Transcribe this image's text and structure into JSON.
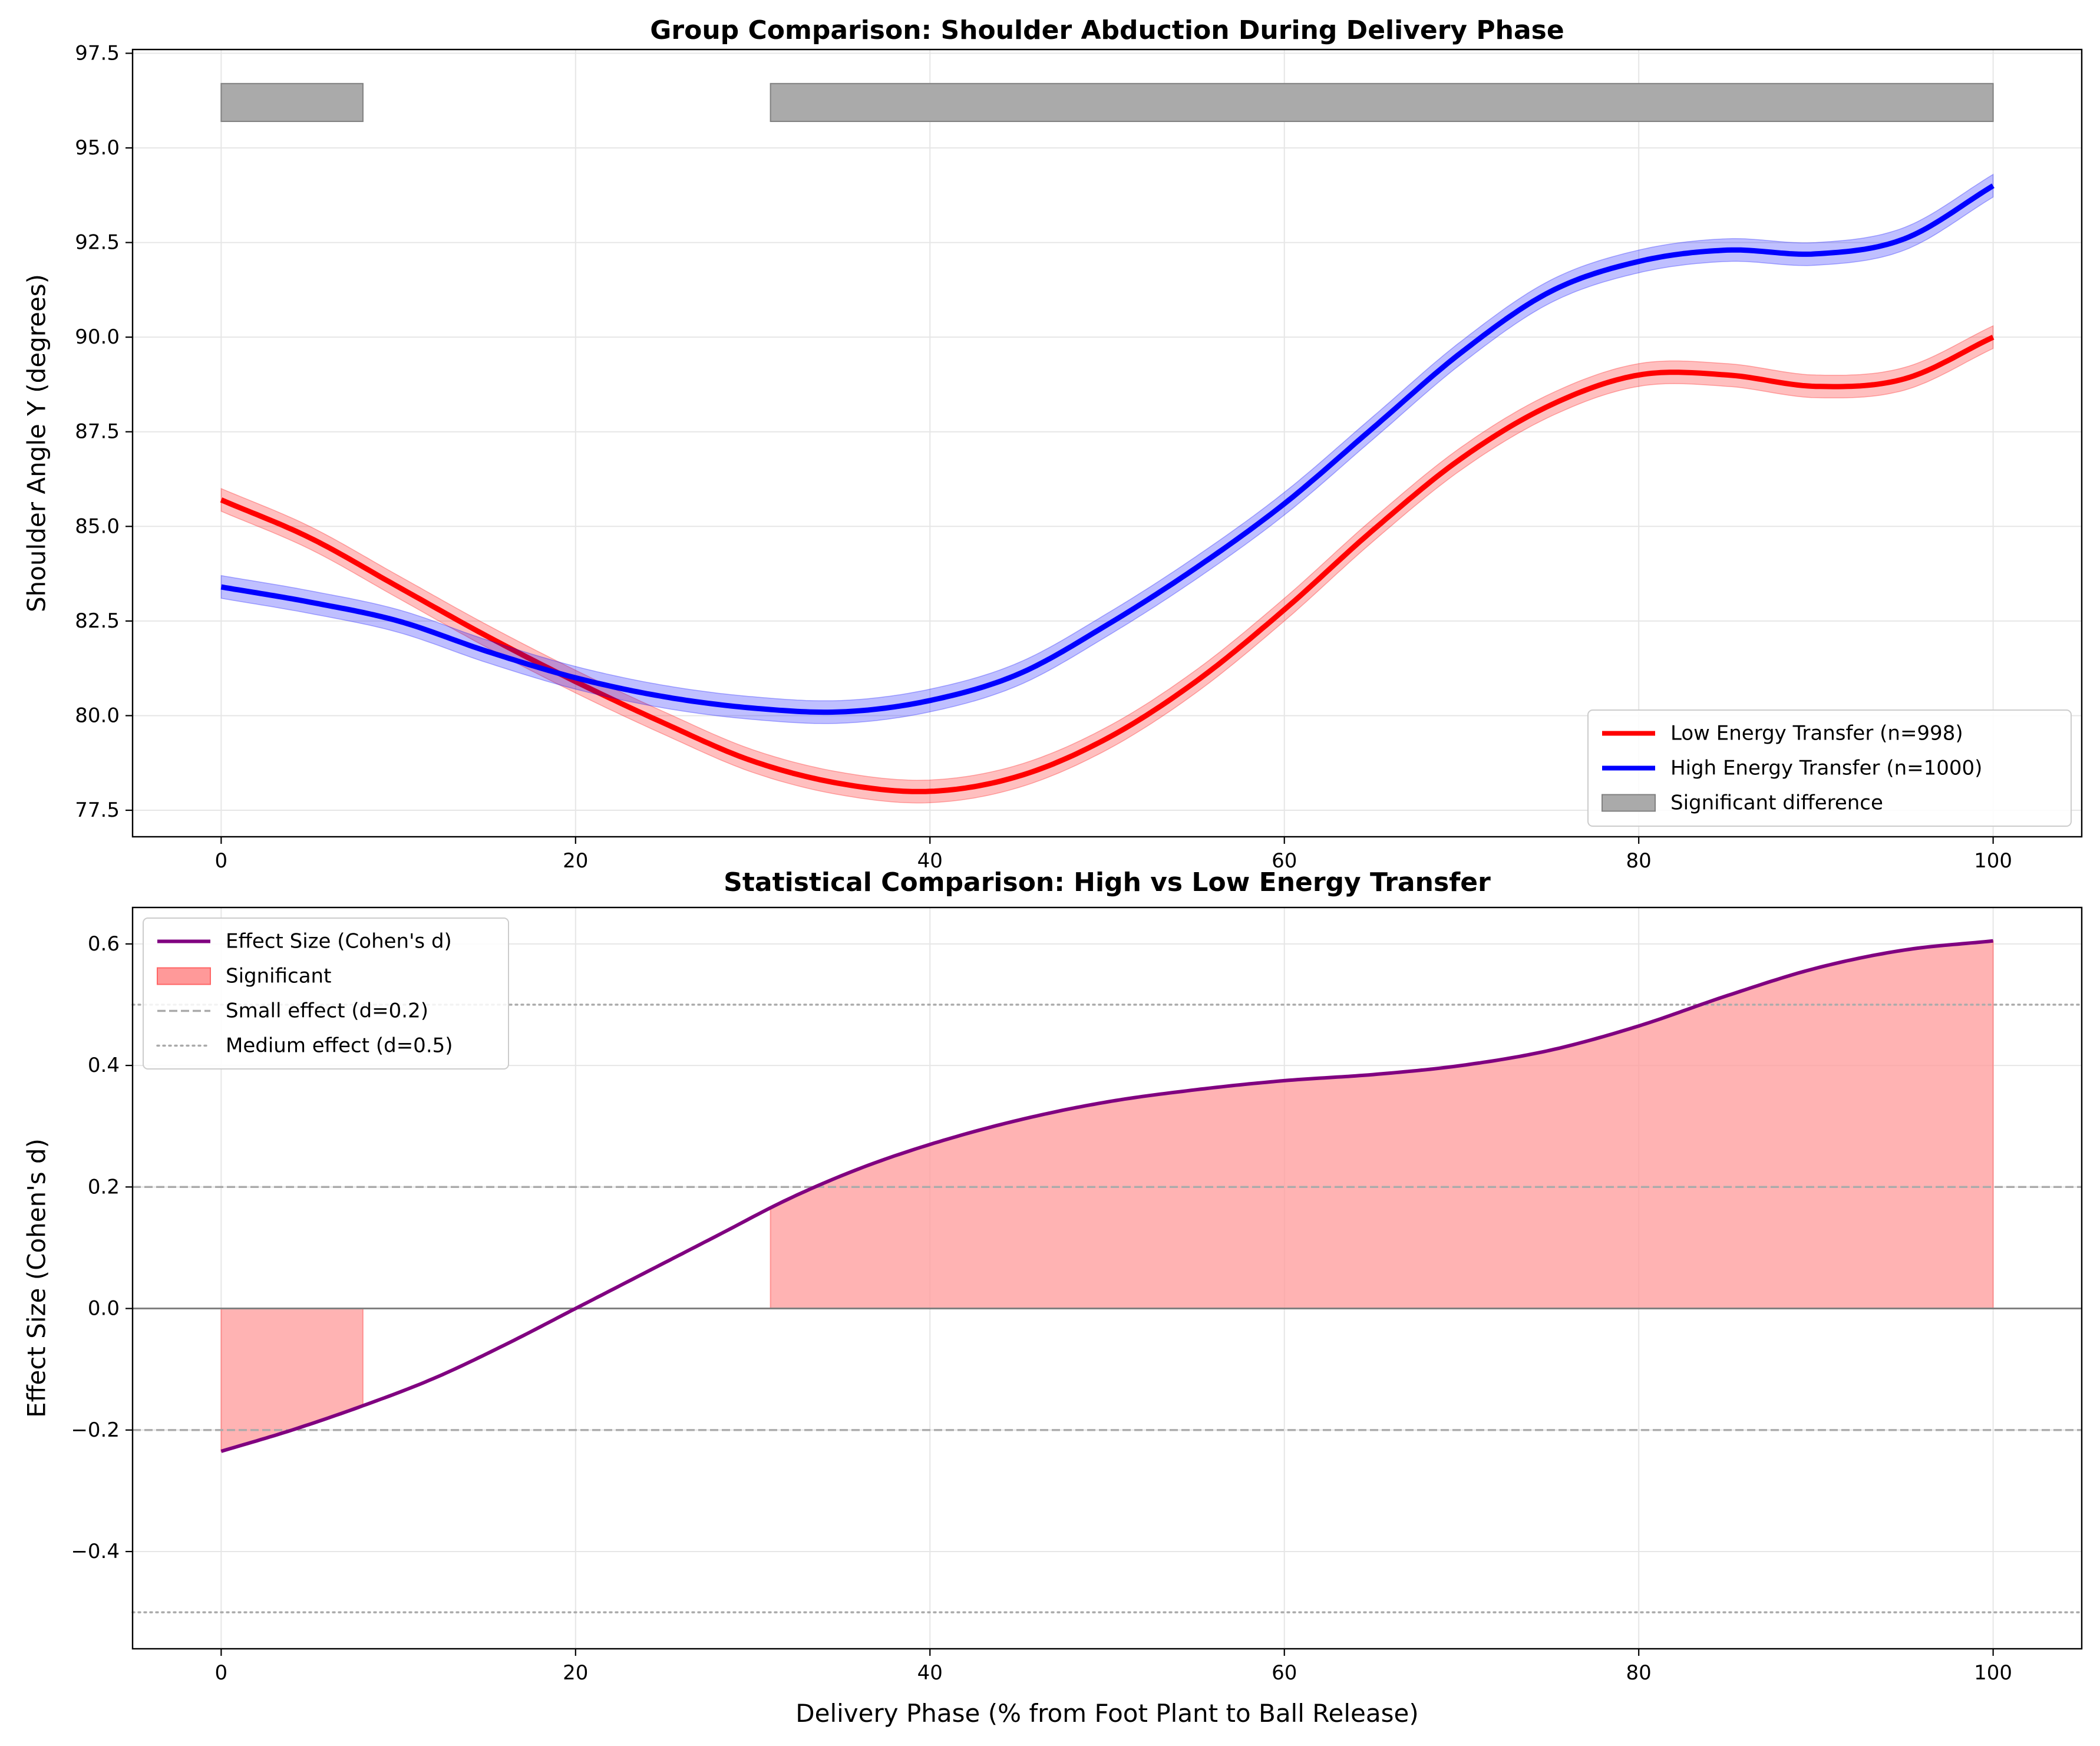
{
  "colors": {
    "low": "#ff0000",
    "high": "#0000ff",
    "effect": "#800080",
    "sig_fill": "#ff9999",
    "sig_bar": "#aaaaaa",
    "ref_line": "#aaaaaa"
  },
  "chart_data": [
    {
      "type": "line",
      "title": "Group Comparison: Shoulder Abduction During Delivery Phase",
      "xlabel": "",
      "ylabel": "Shoulder Angle Y (degrees)",
      "xlim": [
        -5,
        105
      ],
      "ylim": [
        76.8,
        97.6
      ],
      "xticks": [
        0,
        20,
        40,
        60,
        80,
        100
      ],
      "yticks": [
        77.5,
        80.0,
        82.5,
        85.0,
        87.5,
        90.0,
        92.5,
        95.0,
        97.5
      ],
      "ytick_labels": [
        "77.5",
        "80.0",
        "82.5",
        "85.0",
        "87.5",
        "90.0",
        "92.5",
        "95.0",
        "97.5"
      ],
      "xtick_labels": [
        "0",
        "20",
        "40",
        "60",
        "80",
        "100"
      ],
      "grid": true,
      "legend_position": "lower-right",
      "legend": [
        {
          "label": "Low Energy Transfer (n=998)",
          "kind": "line",
          "color_key": "low"
        },
        {
          "label": "High Energy Transfer (n=1000)",
          "kind": "line",
          "color_key": "high"
        },
        {
          "label": "Significant difference",
          "kind": "patch",
          "color_key": "sig_bar"
        }
      ],
      "band_halfwidth": 0.3,
      "significant_regions": [
        [
          0,
          8
        ],
        [
          31,
          100
        ]
      ],
      "significant_bar_range": [
        95.7,
        96.7
      ],
      "series": [
        {
          "name": "Low Energy Transfer (n=998)",
          "color_key": "low",
          "x": [
            0,
            5,
            10,
            15,
            20,
            25,
            30,
            35,
            40,
            45,
            50,
            55,
            60,
            65,
            70,
            75,
            80,
            85,
            90,
            95,
            100
          ],
          "y": [
            85.7,
            84.7,
            83.4,
            82.1,
            80.9,
            79.8,
            78.8,
            78.2,
            78.0,
            78.4,
            79.4,
            80.9,
            82.8,
            84.9,
            86.8,
            88.2,
            89.0,
            89.0,
            88.7,
            88.9,
            90.0
          ]
        },
        {
          "name": "High Energy Transfer (n=1000)",
          "color_key": "high",
          "x": [
            0,
            5,
            10,
            15,
            20,
            25,
            30,
            35,
            40,
            45,
            50,
            55,
            60,
            65,
            70,
            75,
            80,
            85,
            90,
            95,
            100
          ],
          "y": [
            83.4,
            83.0,
            82.5,
            81.7,
            81.0,
            80.5,
            80.2,
            80.1,
            80.4,
            81.1,
            82.4,
            83.9,
            85.6,
            87.6,
            89.6,
            91.2,
            92.0,
            92.3,
            92.2,
            92.6,
            94.0
          ]
        }
      ]
    },
    {
      "type": "line",
      "title": "Statistical Comparison: High vs Low Energy Transfer",
      "xlabel": "Delivery Phase (% from Foot Plant to Ball Release)",
      "ylabel": "Effect Size (Cohen's d)",
      "xlim": [
        -5,
        105
      ],
      "ylim": [
        -0.56,
        0.66
      ],
      "xticks": [
        0,
        20,
        40,
        60,
        80,
        100
      ],
      "xtick_labels": [
        "0",
        "20",
        "40",
        "60",
        "80",
        "100"
      ],
      "yticks": [
        -0.4,
        -0.2,
        0.0,
        0.2,
        0.4,
        0.6
      ],
      "ytick_labels": [
        "−0.4",
        "−0.2",
        "0.0",
        "0.2",
        "0.4",
        "0.6"
      ],
      "grid": true,
      "legend_position": "upper-left",
      "legend": [
        {
          "label": "Effect Size (Cohen's d)",
          "kind": "line",
          "color_key": "effect"
        },
        {
          "label": "Significant",
          "kind": "patch",
          "color_key": "sig_fill"
        },
        {
          "label": "Small effect (d=0.2)",
          "kind": "dashed",
          "color_key": "ref_line"
        },
        {
          "label": "Medium effect (d=0.5)",
          "kind": "dotted",
          "color_key": "ref_line"
        }
      ],
      "reference_lines": [
        {
          "y": 0.2,
          "style": "dashed"
        },
        {
          "y": -0.2,
          "style": "dashed"
        },
        {
          "y": 0.5,
          "style": "dotted"
        },
        {
          "y": -0.5,
          "style": "dotted"
        },
        {
          "y": 0.0,
          "style": "solid"
        }
      ],
      "significant_regions": [
        [
          0,
          8
        ],
        [
          31,
          100
        ]
      ],
      "series": [
        {
          "name": "Effect Size (Cohen's d)",
          "color_key": "effect",
          "x": [
            0,
            4,
            8,
            12,
            16,
            20,
            24,
            28,
            32,
            36,
            40,
            45,
            50,
            55,
            60,
            65,
            70,
            75,
            80,
            85,
            90,
            95,
            100
          ],
          "y": [
            -0.235,
            -0.2,
            -0.16,
            -0.115,
            -0.06,
            0.0,
            0.06,
            0.12,
            0.18,
            0.23,
            0.27,
            0.31,
            0.34,
            0.36,
            0.375,
            0.385,
            0.4,
            0.425,
            0.465,
            0.515,
            0.56,
            0.59,
            0.605
          ]
        }
      ]
    }
  ]
}
